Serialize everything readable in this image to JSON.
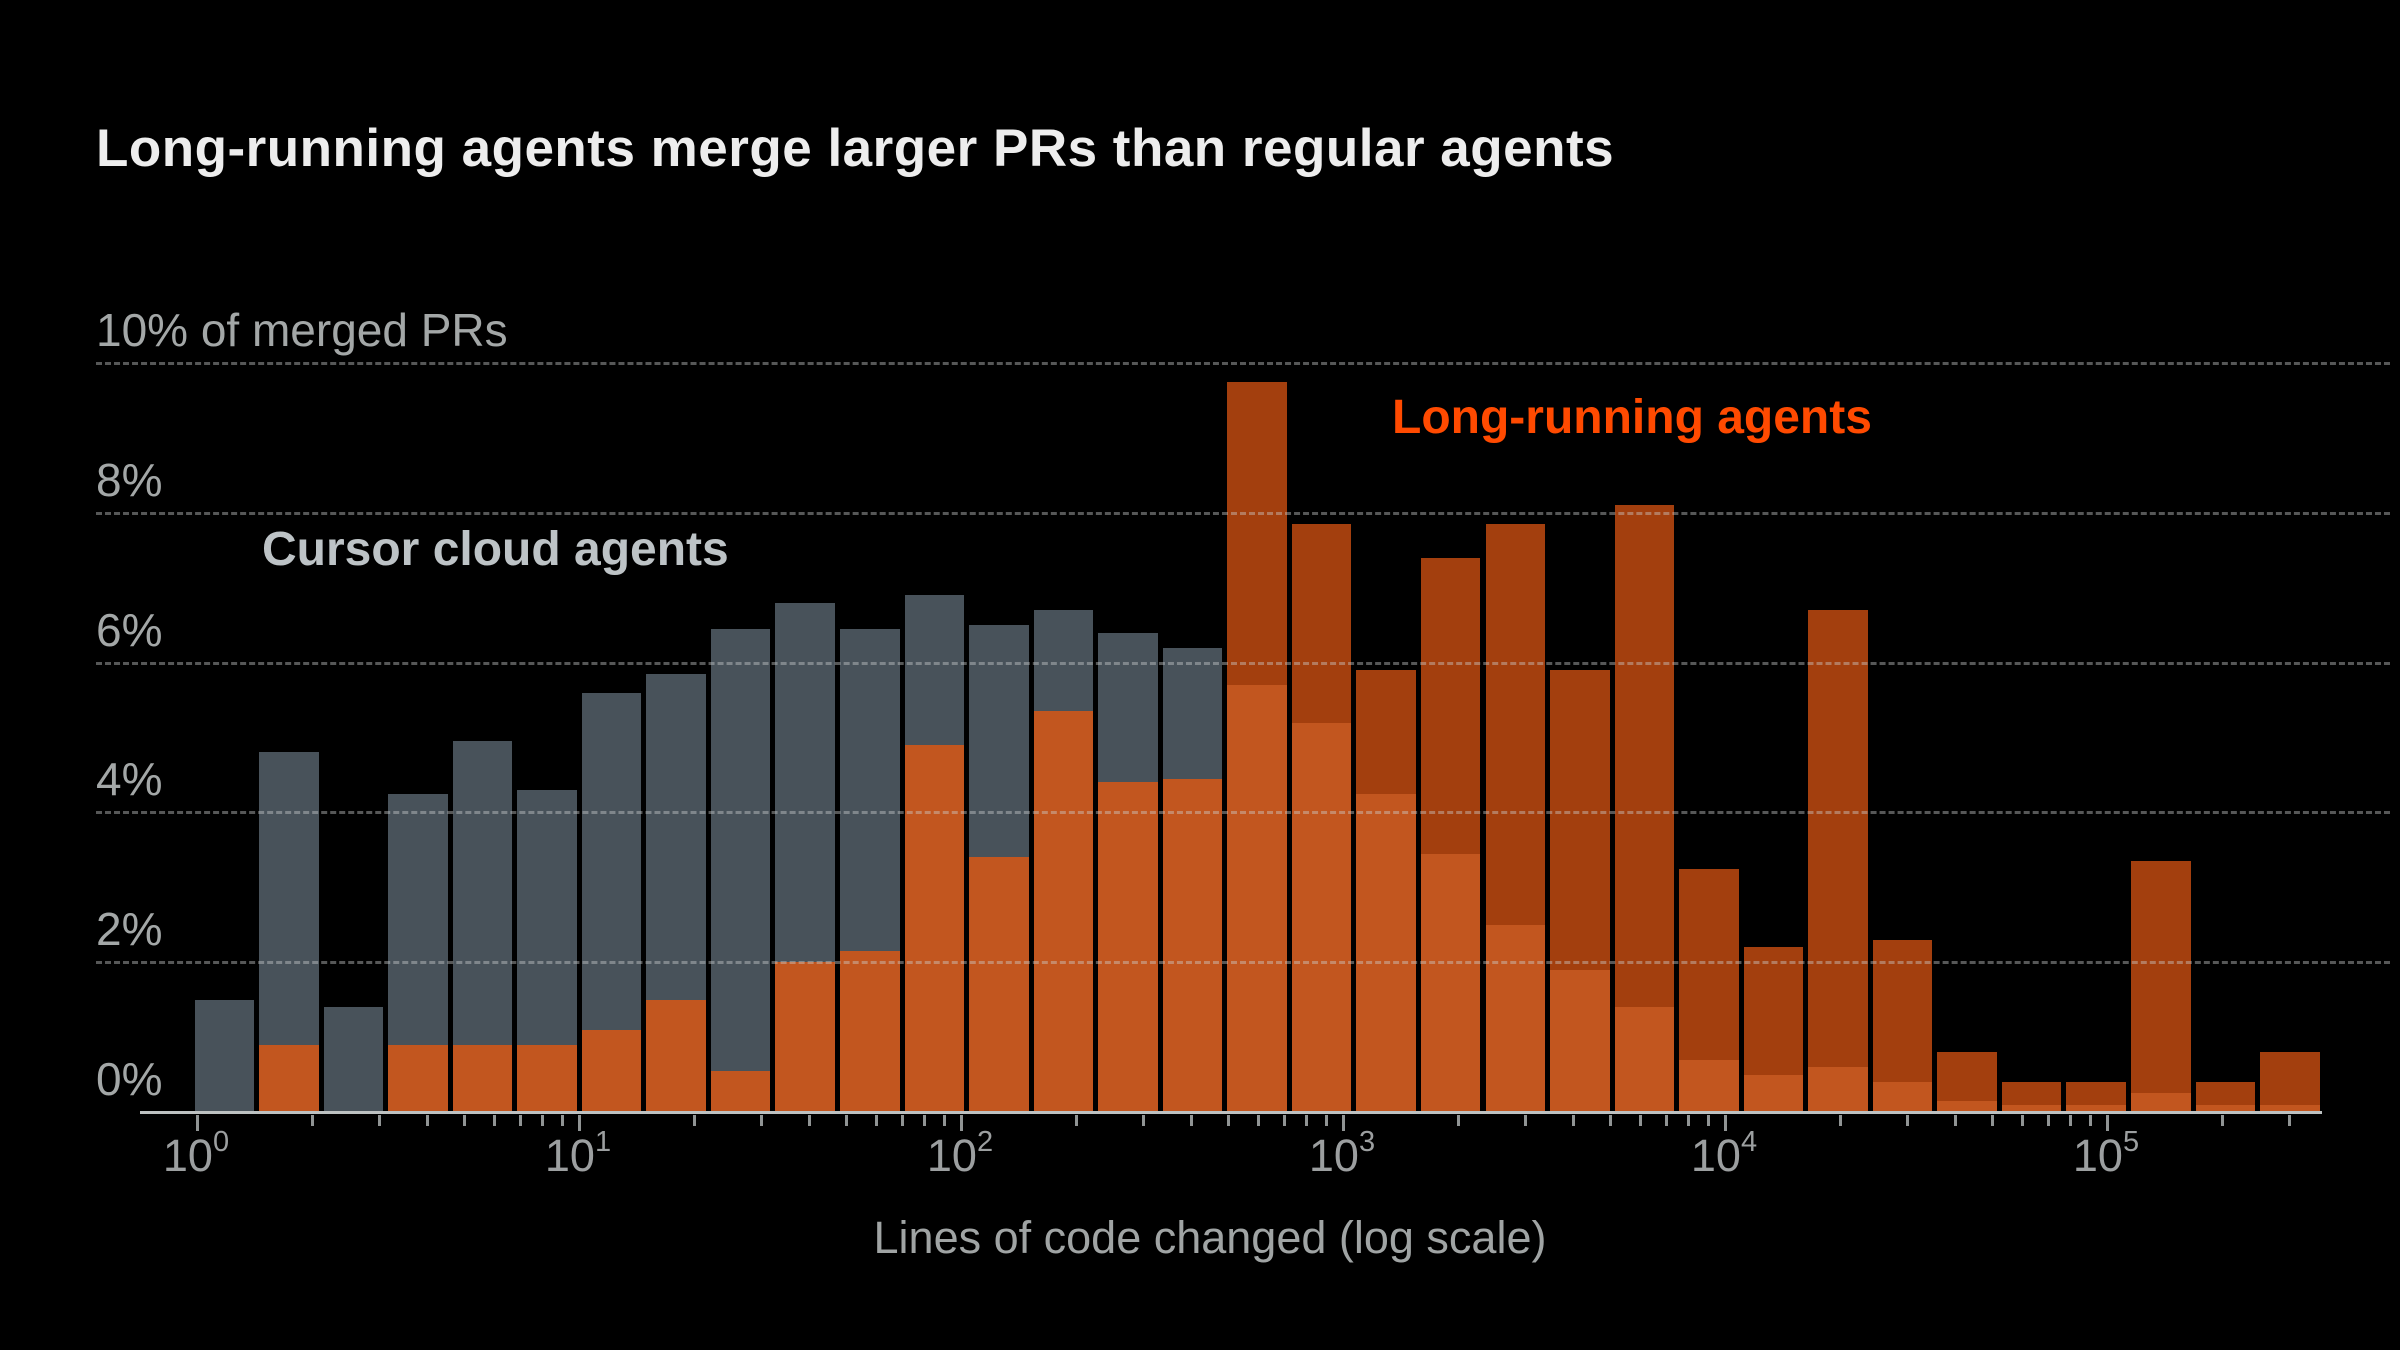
{
  "header": {
    "title": "Long-running agents merge larger PRs than regular agents"
  },
  "legend": {
    "cloud_agents_label": "Cursor cloud agents",
    "long_running_label": "Long-running agents"
  },
  "y_axis": {
    "unit": "% of merged PRs",
    "labels": [
      {
        "text": "10% of merged PRs",
        "pct": 10
      },
      {
        "text": "8%",
        "pct": 8
      },
      {
        "text": "6%",
        "pct": 6
      },
      {
        "text": "4%",
        "pct": 4
      },
      {
        "text": "2%",
        "pct": 2
      },
      {
        "text": "0%",
        "pct": 0
      }
    ]
  },
  "x_axis": {
    "title": "Lines of code changed (log scale)",
    "scale": "log10",
    "tick_labels": [
      {
        "base": "10",
        "exp": "0",
        "value": 1
      },
      {
        "base": "10",
        "exp": "1",
        "value": 10
      },
      {
        "base": "10",
        "exp": "2",
        "value": 100
      },
      {
        "base": "10",
        "exp": "3",
        "value": 1000
      },
      {
        "base": "10",
        "exp": "4",
        "value": 10000
      },
      {
        "base": "10",
        "exp": "5",
        "value": 100000
      }
    ]
  },
  "colors": {
    "background": "#000000",
    "title_text": "#EDEDED",
    "axis_text": "#9C9FA0",
    "gridline": "#8F9292",
    "cloud_agents_bar": "#48525A",
    "long_running_bar_over_gray": "#C2561F",
    "long_running_bar_over_black": "#A33F0E",
    "long_running_legend": "#FF4A00",
    "cloud_legend": "#BDC3C6"
  },
  "chart_data": {
    "type": "bar",
    "subtype": "overlaid-histogram",
    "title": "Long-running agents merge larger PRs than regular agents",
    "xlabel": "Lines of code changed (log scale)",
    "ylabel": "% of merged PRs",
    "ylim": [
      0,
      10
    ],
    "x_scale": "log",
    "x_range_loc": [
      1,
      300000
    ],
    "bins_per_decade": 6,
    "bin_count": 33,
    "grid": "dashed horizontal every 2%",
    "legend_position": "inline text labels on plot",
    "series": [
      {
        "name": "Cursor cloud agents",
        "values_pct": [
          1.5,
          4.8,
          1.4,
          4.25,
          4.95,
          4.3,
          5.6,
          5.85,
          6.45,
          6.8,
          6.45,
          6.9,
          6.5,
          6.7,
          6.4,
          6.2,
          5.7,
          5.2,
          4.25,
          3.45,
          2.5,
          1.9,
          1.4,
          0.7,
          0.5,
          0.6,
          0.4,
          0.15,
          0.1,
          0.1,
          0.25,
          0.1,
          0.1
        ]
      },
      {
        "name": "Long-running agents",
        "values_pct": [
          0,
          0.9,
          0,
          0.9,
          0.9,
          0.9,
          1.1,
          1.5,
          0.55,
          2.0,
          2.15,
          4.9,
          3.4,
          5.35,
          4.4,
          4.45,
          9.75,
          7.85,
          5.9,
          7.4,
          7.85,
          5.9,
          8.1,
          3.25,
          2.2,
          6.7,
          2.3,
          0.8,
          0.4,
          0.4,
          3.35,
          0.4,
          0.8
        ]
      }
    ]
  }
}
